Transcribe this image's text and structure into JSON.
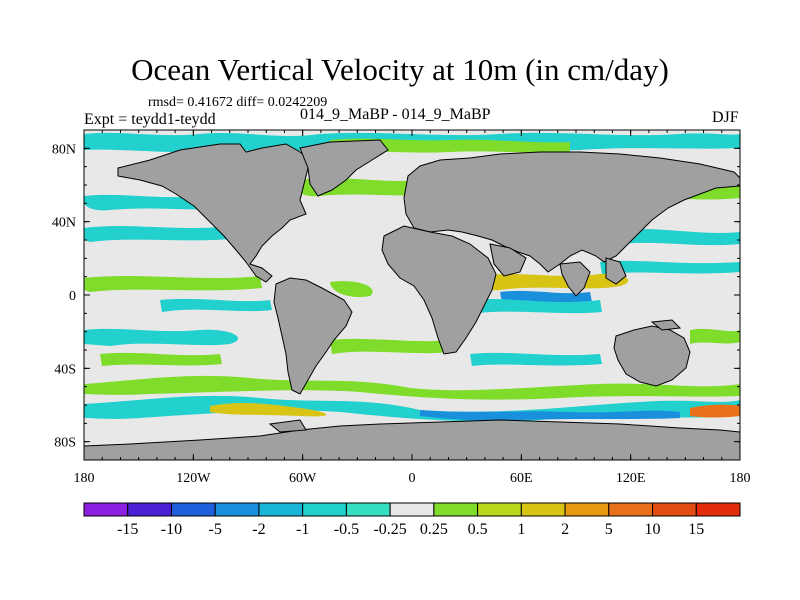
{
  "header": {
    "title": "Ocean Vertical Velocity at 10m (in cm/day)",
    "stats": "rmsd= 0.41672 diff= 0.0242209",
    "experiment": "Expt = teydd1-teydd",
    "case": "014_9_MaBP - 014_9_MaBP",
    "season": "DJF"
  },
  "axes": {
    "lon_labels": [
      "180",
      "120W",
      "60W",
      "0",
      "60E",
      "120E",
      "180"
    ],
    "lat_labels": [
      "80N",
      "40N",
      "0",
      "40S",
      "80S"
    ]
  },
  "colorbar": {
    "labels": [
      "-15",
      "-10",
      "-5",
      "-2",
      "-1",
      "-0.5",
      "-0.25",
      "0.25",
      "0.5",
      "1",
      "2",
      "5",
      "10",
      "15"
    ],
    "colors": [
      "#8c1fe0",
      "#4b21d6",
      "#1f5fdc",
      "#1a8fdb",
      "#19b4d6",
      "#22d0cd",
      "#36dfc0",
      "#e8e8e8",
      "#7fdc2a",
      "#b8d81b",
      "#d8c414",
      "#e69a12",
      "#e8701a",
      "#e24d12",
      "#e22c0a"
    ]
  },
  "map": {
    "land_color": "#a0a0a0",
    "ocean_color": "#e8e8e8"
  }
}
